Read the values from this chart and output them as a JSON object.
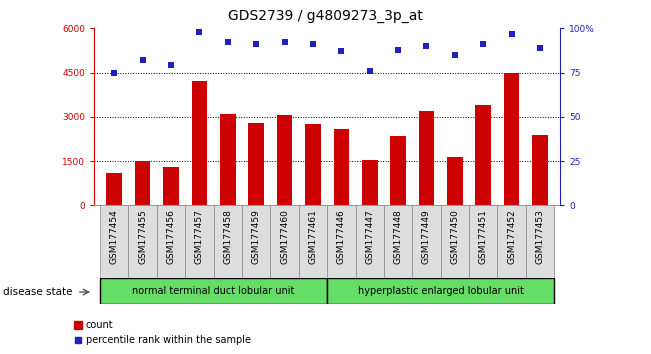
{
  "title": "GDS2739 / g4809273_3p_at",
  "categories": [
    "GSM177454",
    "GSM177455",
    "GSM177456",
    "GSM177457",
    "GSM177458",
    "GSM177459",
    "GSM177460",
    "GSM177461",
    "GSM177446",
    "GSM177447",
    "GSM177448",
    "GSM177449",
    "GSM177450",
    "GSM177451",
    "GSM177452",
    "GSM177453"
  ],
  "bar_values": [
    1100,
    1500,
    1300,
    4200,
    3100,
    2800,
    3050,
    2750,
    2600,
    1550,
    2350,
    3200,
    1650,
    3400,
    4500,
    2400
  ],
  "percentile_values": [
    75,
    82,
    79,
    98,
    92,
    91,
    92,
    91,
    87,
    76,
    88,
    90,
    85,
    91,
    97,
    89
  ],
  "bar_color": "#CC0000",
  "percentile_color": "#2020BB",
  "ylim_left": [
    0,
    6000
  ],
  "ylim_right": [
    0,
    100
  ],
  "yticks_left": [
    0,
    1500,
    3000,
    4500,
    6000
  ],
  "yticks_right": [
    0,
    25,
    50,
    75,
    100
  ],
  "grid_values": [
    1500,
    3000,
    4500
  ],
  "group1_label": "normal terminal duct lobular unit",
  "group2_label": "hyperplastic enlarged lobular unit",
  "group1_count": 8,
  "group2_count": 8,
  "disease_state_label": "disease state",
  "legend_bar_label": "count",
  "legend_point_label": "percentile rank within the sample",
  "group_color": "#66DD66",
  "bar_width": 0.55,
  "title_fontsize": 10,
  "tick_fontsize": 6.5,
  "right_axis_color": "#2020BB",
  "left_axis_color": "#CC0000",
  "xticklabel_bg": "#DDDDDD",
  "plot_bg": "#FFFFFF"
}
